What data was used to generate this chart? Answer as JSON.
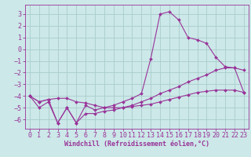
{
  "title": "",
  "xlabel": "Windchill (Refroidissement éolien,°C)",
  "ylabel": "",
  "bg_color": "#cce8e8",
  "grid_color": "#aacccc",
  "line_color": "#993399",
  "xlim": [
    -0.5,
    23.5
  ],
  "ylim": [
    -6.8,
    3.8
  ],
  "xticks": [
    0,
    1,
    2,
    3,
    4,
    5,
    6,
    7,
    8,
    9,
    10,
    11,
    12,
    13,
    14,
    15,
    16,
    17,
    18,
    19,
    20,
    21,
    22,
    23
  ],
  "yticks": [
    -6,
    -5,
    -4,
    -3,
    -2,
    -1,
    0,
    1,
    2,
    3
  ],
  "x": [
    0,
    1,
    2,
    3,
    4,
    5,
    6,
    7,
    8,
    9,
    10,
    11,
    12,
    13,
    14,
    15,
    16,
    17,
    18,
    19,
    20,
    21,
    22,
    23
  ],
  "line1": [
    -4.0,
    -5.0,
    -4.5,
    -6.3,
    -5.0,
    -6.3,
    -4.8,
    -5.2,
    -5.0,
    -4.8,
    -4.5,
    -4.2,
    -3.8,
    -0.8,
    3.0,
    3.2,
    2.5,
    1.0,
    0.8,
    0.5,
    -0.7,
    -1.5,
    -1.6,
    -3.7
  ],
  "line2": [
    -4.0,
    -4.5,
    -4.3,
    -6.3,
    -5.0,
    -6.3,
    -5.5,
    -5.5,
    -5.3,
    -5.2,
    -5.0,
    -4.8,
    -4.5,
    -4.2,
    -3.8,
    -3.5,
    -3.2,
    -2.8,
    -2.5,
    -2.2,
    -1.8,
    -1.6,
    -1.6,
    -1.8
  ],
  "line3": [
    -4.0,
    -4.5,
    -4.3,
    -4.2,
    -4.2,
    -4.5,
    -4.6,
    -4.8,
    -5.0,
    -5.0,
    -5.0,
    -4.9,
    -4.8,
    -4.7,
    -4.5,
    -4.3,
    -4.1,
    -3.9,
    -3.7,
    -3.6,
    -3.5,
    -3.5,
    -3.5,
    -3.7
  ],
  "font_size": 6,
  "marker": "D",
  "marker_size": 2.0,
  "line_width": 0.8
}
